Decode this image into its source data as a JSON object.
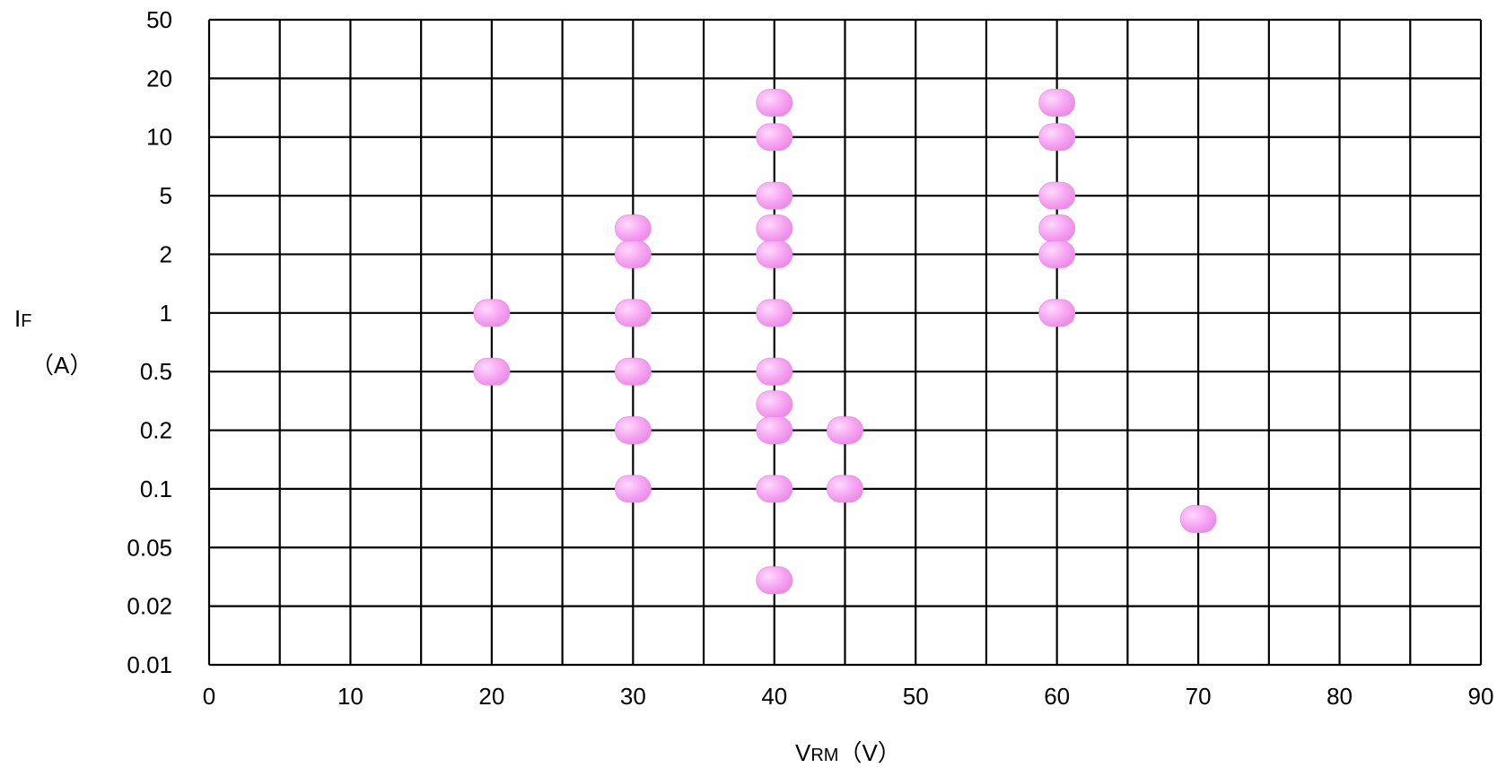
{
  "chart_data": {
    "type": "scatter",
    "title": "",
    "xlabel_main": "V",
    "xlabel_sub": "RM",
    "xlabel_unit": "（V）",
    "ylabel_main": "I",
    "ylabel_sub": "F",
    "ylabel_unit": "（A）",
    "xlim": [
      0,
      90
    ],
    "xticks": [
      "0",
      "10",
      "20",
      "30",
      "40",
      "50",
      "60",
      "70",
      "80",
      "90"
    ],
    "yscale": "log-1-2-5",
    "ylim": [
      0.01,
      50
    ],
    "yticks": [
      "0.01",
      "0.02",
      "0.05",
      "0.1",
      "0.2",
      "0.5",
      "1",
      "2",
      "5",
      "10",
      "20",
      "50"
    ],
    "grid": true,
    "marker_color": "#f49df0",
    "points": [
      {
        "x": 20,
        "y": 1
      },
      {
        "x": 20,
        "y": 0.5
      },
      {
        "x": 30,
        "y": 3
      },
      {
        "x": 30,
        "y": 2
      },
      {
        "x": 30,
        "y": 1
      },
      {
        "x": 30,
        "y": 0.5
      },
      {
        "x": 30,
        "y": 0.2
      },
      {
        "x": 30,
        "y": 0.1
      },
      {
        "x": 40,
        "y": 15
      },
      {
        "x": 40,
        "y": 10
      },
      {
        "x": 40,
        "y": 5
      },
      {
        "x": 40,
        "y": 3
      },
      {
        "x": 40,
        "y": 2
      },
      {
        "x": 40,
        "y": 1
      },
      {
        "x": 40,
        "y": 0.5
      },
      {
        "x": 40,
        "y": 0.3
      },
      {
        "x": 40,
        "y": 0.2
      },
      {
        "x": 40,
        "y": 0.1
      },
      {
        "x": 40,
        "y": 0.03
      },
      {
        "x": 45,
        "y": 0.2
      },
      {
        "x": 45,
        "y": 0.1
      },
      {
        "x": 60,
        "y": 15
      },
      {
        "x": 60,
        "y": 10
      },
      {
        "x": 60,
        "y": 5
      },
      {
        "x": 60,
        "y": 3
      },
      {
        "x": 60,
        "y": 2
      },
      {
        "x": 60,
        "y": 1
      },
      {
        "x": 70,
        "y": 0.07
      }
    ]
  }
}
